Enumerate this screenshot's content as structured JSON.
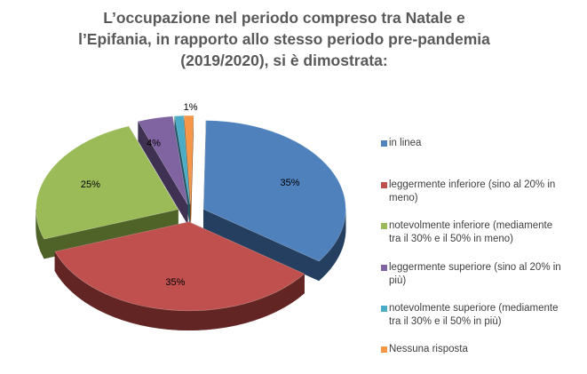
{
  "chart_data": {
    "type": "pie",
    "title_lines": [
      "L’occupazione nel periodo compreso tra Natale e",
      "l’Epifania, in rapporto allo stesso periodo pre-pandemia",
      "(2019/2020), si è dimostrata:"
    ],
    "style": "3d-exploded",
    "legend_position": "right",
    "slices": [
      {
        "label_lines": [
          "in linea"
        ],
        "value": 35,
        "data_label": "35%",
        "color": "#4F81BD",
        "side_color": "#243F60"
      },
      {
        "label_lines": [
          "leggermente inferiore (sino al 20% in",
          "meno)"
        ],
        "value": 35,
        "data_label": "35%",
        "color": "#C0504D",
        "side_color": "#632523"
      },
      {
        "label_lines": [
          "notevolmente inferiore (mediamente",
          "tra il 30% e il 50% in meno)"
        ],
        "value": 25,
        "data_label": "25%",
        "color": "#9BBB59",
        "side_color": "#4F6228"
      },
      {
        "label_lines": [
          "leggermente superiore (sino al 20% in",
          "più)"
        ],
        "value": 4,
        "data_label": "4%",
        "color": "#8064A2",
        "side_color": "#3F3151"
      },
      {
        "label_lines": [
          "notevolmente superiore (mediamente",
          "tra il 30% e il 50% in più)"
        ],
        "value": 1,
        "data_label": "",
        "color": "#4BACC6",
        "side_color": "#205867"
      },
      {
        "label_lines": [
          "Nessuna risposta"
        ],
        "value": 1,
        "data_label": "1%",
        "color": "#F79646",
        "side_color": "#974806"
      }
    ]
  }
}
